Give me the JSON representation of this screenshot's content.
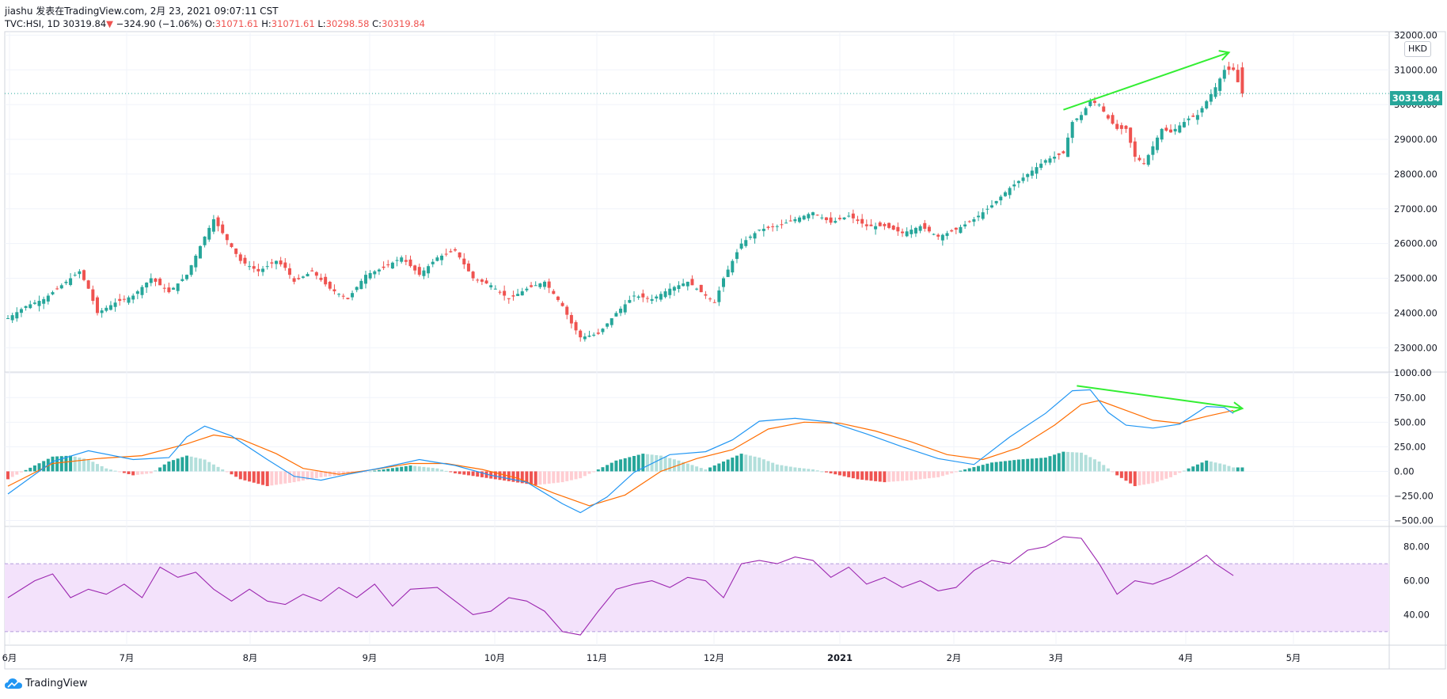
{
  "header": {
    "line1": "jiashu 发表在TradingView.com, 2月 23, 2021 09:07:11 CST",
    "symbol": "TVC:HSI, 1D",
    "last": "30319.84",
    "change_arrow": "▼",
    "change": "−324.90 (−1.06%)",
    "o_label": "O:",
    "o_value": "31071.61",
    "h_label": "H:",
    "h_value": "31071.61",
    "l_label": "L:",
    "l_value": "30298.58",
    "c_label": "C:",
    "c_value": "30319.84"
  },
  "price_axis": {
    "currency": "HKD",
    "last_price_label": "30319.84",
    "ticks": [
      "32000.00",
      "31000.00",
      "30000.00",
      "29000.00",
      "28000.00",
      "27000.00",
      "26000.00",
      "25000.00",
      "24000.00",
      "23000.00"
    ],
    "min": 22300,
    "max": 32100
  },
  "macd_axis": {
    "ticks": [
      "1000.00",
      "750.00",
      "500.00",
      "250.00",
      "0.00",
      "−250.00",
      "−500.00"
    ],
    "min": -560,
    "max": 1010
  },
  "rsi_axis": {
    "ticks": [
      "80.00",
      "60.00",
      "40.00"
    ],
    "min": 22,
    "max": 92,
    "upper_band": 70,
    "lower_band": 30
  },
  "time_axis": {
    "labels": [
      "6月",
      "7月",
      "8月",
      "9月",
      "10月",
      "11月",
      "12月",
      "2021",
      "2月",
      "3月",
      "4月",
      "5月"
    ]
  },
  "brand": {
    "name": "TradingView"
  },
  "colors": {
    "up": "#26a69a",
    "down": "#ef5350",
    "macd_line": "#2196f3",
    "signal_line": "#ff6d00",
    "rsi_line": "#9c27b0",
    "rsi_band": "#f3e2fb",
    "trend_arrow": "#33ee33"
  },
  "chart_data": [
    {
      "type": "candlestick",
      "title": "TVC:HSI, 1D",
      "close_path": [
        [
          0,
          23850
        ],
        [
          4,
          24200
        ],
        [
          8,
          24400
        ],
        [
          12,
          24800
        ],
        [
          16,
          25200
        ],
        [
          18,
          24700
        ],
        [
          20,
          24000
        ],
        [
          24,
          24300
        ],
        [
          28,
          24500
        ],
        [
          32,
          25000
        ],
        [
          36,
          24600
        ],
        [
          40,
          25100
        ],
        [
          44,
          26200
        ],
        [
          46,
          26700
        ],
        [
          48,
          26300
        ],
        [
          52,
          25500
        ],
        [
          56,
          25200
        ],
        [
          60,
          25500
        ],
        [
          62,
          25300
        ],
        [
          64,
          24900
        ],
        [
          68,
          25200
        ],
        [
          72,
          24700
        ],
        [
          76,
          24400
        ],
        [
          80,
          25100
        ],
        [
          84,
          25300
        ],
        [
          88,
          25600
        ],
        [
          92,
          25100
        ],
        [
          96,
          25600
        ],
        [
          100,
          25800
        ],
        [
          104,
          25000
        ],
        [
          108,
          24800
        ],
        [
          112,
          24400
        ],
        [
          116,
          24700
        ],
        [
          120,
          24900
        ],
        [
          124,
          24200
        ],
        [
          126,
          23700
        ],
        [
          128,
          23300
        ],
        [
          132,
          23400
        ],
        [
          136,
          24000
        ],
        [
          140,
          24500
        ],
        [
          144,
          24400
        ],
        [
          148,
          24700
        ],
        [
          152,
          24900
        ],
        [
          156,
          24500
        ],
        [
          158,
          24300
        ],
        [
          160,
          25000
        ],
        [
          164,
          26000
        ],
        [
          168,
          26400
        ],
        [
          172,
          26500
        ],
        [
          176,
          26700
        ],
        [
          180,
          26900
        ],
        [
          184,
          26600
        ],
        [
          188,
          26800
        ],
        [
          192,
          26500
        ],
        [
          196,
          26500
        ],
        [
          200,
          26300
        ],
        [
          204,
          26500
        ],
        [
          208,
          26200
        ],
        [
          212,
          26400
        ],
        [
          216,
          26700
        ],
        [
          220,
          27100
        ],
        [
          224,
          27600
        ],
        [
          228,
          28000
        ],
        [
          232,
          28400
        ],
        [
          236,
          28600
        ],
        [
          238,
          29500
        ],
        [
          240,
          29700
        ],
        [
          242,
          30100
        ],
        [
          244,
          30000
        ],
        [
          246,
          29600
        ],
        [
          248,
          29300
        ],
        [
          250,
          29300
        ],
        [
          252,
          28500
        ],
        [
          254,
          28300
        ],
        [
          256,
          28800
        ],
        [
          258,
          29300
        ],
        [
          260,
          29200
        ],
        [
          262,
          29400
        ],
        [
          264,
          29600
        ],
        [
          266,
          29700
        ],
        [
          268,
          30100
        ],
        [
          270,
          30500
        ],
        [
          272,
          31000
        ],
        [
          274,
          31000
        ],
        [
          275,
          30644
        ],
        [
          276,
          30320
        ]
      ],
      "last": 30319.84,
      "open": 31071.61,
      "high": 31071.61,
      "low": 30298.58,
      "close": 30319.84,
      "trend_annotation": {
        "from": [
          236,
          29850
        ],
        "to": [
          273,
          31500
        ]
      }
    },
    {
      "type": "line",
      "name": "MACD",
      "macd": [
        [
          0,
          -230
        ],
        [
          10,
          100
        ],
        [
          18,
          210
        ],
        [
          28,
          120
        ],
        [
          36,
          140
        ],
        [
          40,
          350
        ],
        [
          44,
          460
        ],
        [
          50,
          360
        ],
        [
          58,
          120
        ],
        [
          64,
          -50
        ],
        [
          70,
          -90
        ],
        [
          76,
          -30
        ],
        [
          84,
          40
        ],
        [
          92,
          120
        ],
        [
          100,
          60
        ],
        [
          108,
          -40
        ],
        [
          116,
          -110
        ],
        [
          124,
          -330
        ],
        [
          128,
          -420
        ],
        [
          134,
          -260
        ],
        [
          140,
          -10
        ],
        [
          148,
          170
        ],
        [
          156,
          200
        ],
        [
          162,
          320
        ],
        [
          168,
          510
        ],
        [
          176,
          540
        ],
        [
          184,
          500
        ],
        [
          192,
          380
        ],
        [
          200,
          250
        ],
        [
          208,
          130
        ],
        [
          216,
          70
        ],
        [
          224,
          350
        ],
        [
          232,
          590
        ],
        [
          238,
          820
        ],
        [
          242,
          830
        ],
        [
          246,
          600
        ],
        [
          250,
          470
        ],
        [
          256,
          440
        ],
        [
          262,
          480
        ],
        [
          268,
          660
        ],
        [
          272,
          650
        ],
        [
          274,
          590
        ]
      ],
      "signal": [
        [
          0,
          -150
        ],
        [
          10,
          80
        ],
        [
          20,
          130
        ],
        [
          30,
          160
        ],
        [
          40,
          280
        ],
        [
          46,
          370
        ],
        [
          52,
          330
        ],
        [
          60,
          180
        ],
        [
          66,
          30
        ],
        [
          74,
          -30
        ],
        [
          82,
          20
        ],
        [
          90,
          80
        ],
        [
          98,
          80
        ],
        [
          106,
          20
        ],
        [
          114,
          -70
        ],
        [
          122,
          -220
        ],
        [
          130,
          -350
        ],
        [
          138,
          -240
        ],
        [
          146,
          0
        ],
        [
          154,
          130
        ],
        [
          162,
          220
        ],
        [
          170,
          430
        ],
        [
          178,
          500
        ],
        [
          186,
          490
        ],
        [
          194,
          410
        ],
        [
          202,
          300
        ],
        [
          210,
          170
        ],
        [
          218,
          120
        ],
        [
          226,
          240
        ],
        [
          234,
          470
        ],
        [
          240,
          680
        ],
        [
          244,
          720
        ],
        [
          250,
          620
        ],
        [
          256,
          520
        ],
        [
          262,
          490
        ],
        [
          268,
          560
        ],
        [
          274,
          620
        ]
      ],
      "histogram": [
        [
          0,
          -80
        ],
        [
          6,
          60
        ],
        [
          10,
          150
        ],
        [
          14,
          160
        ],
        [
          18,
          120
        ],
        [
          22,
          30
        ],
        [
          28,
          -40
        ],
        [
          32,
          -20
        ],
        [
          36,
          100
        ],
        [
          40,
          160
        ],
        [
          44,
          120
        ],
        [
          48,
          20
        ],
        [
          52,
          -80
        ],
        [
          58,
          -150
        ],
        [
          64,
          -110
        ],
        [
          70,
          -60
        ],
        [
          76,
          -30
        ],
        [
          84,
          20
        ],
        [
          90,
          60
        ],
        [
          96,
          30
        ],
        [
          100,
          -20
        ],
        [
          106,
          -60
        ],
        [
          112,
          -100
        ],
        [
          118,
          -140
        ],
        [
          124,
          -110
        ],
        [
          128,
          -70
        ],
        [
          132,
          20
        ],
        [
          136,
          110
        ],
        [
          142,
          180
        ],
        [
          146,
          160
        ],
        [
          150,
          110
        ],
        [
          156,
          20
        ],
        [
          160,
          100
        ],
        [
          164,
          180
        ],
        [
          168,
          140
        ],
        [
          172,
          70
        ],
        [
          176,
          40
        ],
        [
          180,
          20
        ],
        [
          186,
          -40
        ],
        [
          190,
          -80
        ],
        [
          196,
          -110
        ],
        [
          202,
          -90
        ],
        [
          208,
          -60
        ],
        [
          214,
          20
        ],
        [
          220,
          90
        ],
        [
          226,
          120
        ],
        [
          232,
          140
        ],
        [
          236,
          200
        ],
        [
          240,
          190
        ],
        [
          244,
          100
        ],
        [
          248,
          -40
        ],
        [
          252,
          -150
        ],
        [
          256,
          -120
        ],
        [
          260,
          -60
        ],
        [
          264,
          30
        ],
        [
          268,
          110
        ],
        [
          272,
          70
        ],
        [
          274,
          40
        ]
      ],
      "trend_annotation": {
        "from": [
          239,
          870
        ],
        "to": [
          276,
          640
        ]
      }
    },
    {
      "type": "line",
      "name": "RSI",
      "rsi": [
        [
          0,
          50
        ],
        [
          6,
          60
        ],
        [
          10,
          64
        ],
        [
          14,
          50
        ],
        [
          18,
          55
        ],
        [
          22,
          52
        ],
        [
          26,
          58
        ],
        [
          30,
          50
        ],
        [
          34,
          68
        ],
        [
          38,
          62
        ],
        [
          42,
          65
        ],
        [
          46,
          55
        ],
        [
          50,
          48
        ],
        [
          54,
          55
        ],
        [
          58,
          48
        ],
        [
          62,
          46
        ],
        [
          66,
          52
        ],
        [
          70,
          48
        ],
        [
          74,
          56
        ],
        [
          78,
          50
        ],
        [
          82,
          58
        ],
        [
          86,
          45
        ],
        [
          90,
          55
        ],
        [
          96,
          56
        ],
        [
          100,
          48
        ],
        [
          104,
          40
        ],
        [
          108,
          42
        ],
        [
          112,
          50
        ],
        [
          116,
          48
        ],
        [
          120,
          42
        ],
        [
          124,
          30
        ],
        [
          128,
          28
        ],
        [
          132,
          42
        ],
        [
          136,
          55
        ],
        [
          140,
          58
        ],
        [
          144,
          60
        ],
        [
          148,
          56
        ],
        [
          152,
          62
        ],
        [
          156,
          60
        ],
        [
          160,
          50
        ],
        [
          164,
          70
        ],
        [
          168,
          72
        ],
        [
          172,
          70
        ],
        [
          176,
          74
        ],
        [
          180,
          72
        ],
        [
          184,
          62
        ],
        [
          188,
          68
        ],
        [
          192,
          58
        ],
        [
          196,
          62
        ],
        [
          200,
          56
        ],
        [
          204,
          60
        ],
        [
          208,
          54
        ],
        [
          212,
          56
        ],
        [
          216,
          66
        ],
        [
          220,
          72
        ],
        [
          224,
          70
        ],
        [
          228,
          78
        ],
        [
          232,
          80
        ],
        [
          236,
          86
        ],
        [
          240,
          85
        ],
        [
          244,
          70
        ],
        [
          248,
          52
        ],
        [
          252,
          60
        ],
        [
          256,
          58
        ],
        [
          260,
          62
        ],
        [
          264,
          68
        ],
        [
          268,
          75
        ],
        [
          270,
          70
        ],
        [
          274,
          63
        ]
      ]
    }
  ]
}
